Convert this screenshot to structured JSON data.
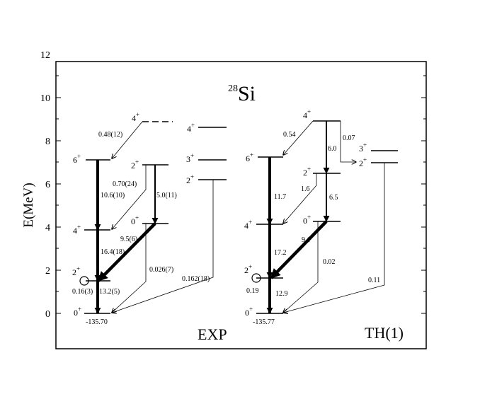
{
  "title": {
    "mass": "28",
    "element": "Si"
  },
  "y_axis": {
    "label": "E(MeV)",
    "ticks": [
      "0",
      "2",
      "4",
      "6",
      "8",
      "10",
      "12"
    ]
  },
  "panels": {
    "exp": {
      "label": "EXP",
      "ground_energy": "-135.70"
    },
    "th": {
      "label": "TH(1)",
      "ground_energy": "-135.77"
    }
  },
  "exp_levels": [
    {
      "spin": "0",
      "parity": "+"
    },
    {
      "spin": "2",
      "parity": "+"
    },
    {
      "spin": "4",
      "parity": "+"
    },
    {
      "spin": "6",
      "parity": "+"
    },
    {
      "spin": "0",
      "parity": "+"
    },
    {
      "spin": "2",
      "parity": "+"
    },
    {
      "spin": "4",
      "parity": "+"
    },
    {
      "spin": "2",
      "parity": "+"
    },
    {
      "spin": "3",
      "parity": "+"
    },
    {
      "spin": "4",
      "parity": "+"
    }
  ],
  "th_levels": [
    {
      "spin": "0",
      "parity": "+"
    },
    {
      "spin": "2",
      "parity": "+"
    },
    {
      "spin": "4",
      "parity": "+"
    },
    {
      "spin": "6",
      "parity": "+"
    },
    {
      "spin": "0",
      "parity": "+"
    },
    {
      "spin": "2",
      "parity": "+"
    },
    {
      "spin": "4",
      "parity": "+"
    },
    {
      "spin": "3",
      "parity": "+"
    },
    {
      "spin": "2",
      "parity": "+"
    }
  ],
  "exp_transitions": [
    "0.16(3)",
    "13.2(5)",
    "16.4(18)",
    "10.6(10)",
    "9.5(6)",
    "0.026(7)",
    "5.0(11)",
    "0.70(24)",
    "0.48(12)",
    "0.162(18)"
  ],
  "th_transitions": [
    "0.19",
    "12.9",
    "17.2",
    "11.7",
    "9.1",
    "0.02",
    "6.5",
    "1.6",
    "6.0",
    "0.54",
    "0.07",
    "0.11"
  ]
}
